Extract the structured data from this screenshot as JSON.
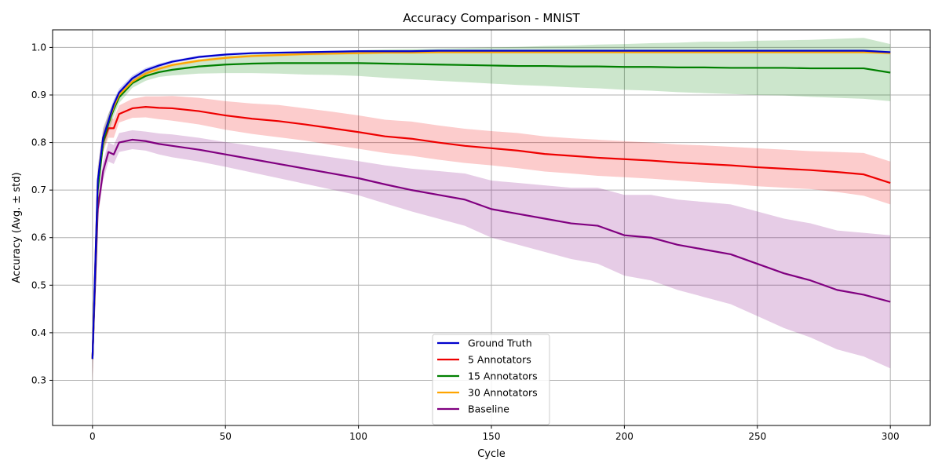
{
  "chart_data": {
    "type": "line",
    "title": "Accuracy Comparison - MNIST",
    "xlabel": "Cycle",
    "ylabel": "Accuracy (Avg. ± std)",
    "xlim": [
      -15,
      315
    ],
    "ylim": [
      0.205,
      1.037
    ],
    "x_ticks": [
      0,
      50,
      100,
      150,
      200,
      250,
      300
    ],
    "y_ticks": [
      0.3,
      0.4,
      0.5,
      0.6,
      0.7,
      0.8,
      0.9,
      1.0
    ],
    "grid": true,
    "legend_position": "lower-center",
    "x": [
      0,
      2,
      4,
      6,
      8,
      10,
      15,
      20,
      25,
      30,
      40,
      50,
      60,
      70,
      80,
      90,
      100,
      110,
      120,
      130,
      140,
      150,
      160,
      170,
      180,
      190,
      200,
      210,
      220,
      230,
      240,
      250,
      260,
      270,
      280,
      290,
      300
    ],
    "series": [
      {
        "name": "Ground Truth",
        "color": "#0000cc",
        "values": [
          0.345,
          0.72,
          0.81,
          0.845,
          0.88,
          0.905,
          0.935,
          0.952,
          0.962,
          0.97,
          0.98,
          0.985,
          0.988,
          0.989,
          0.99,
          0.991,
          0.992,
          0.992,
          0.992,
          0.993,
          0.993,
          0.993,
          0.993,
          0.993,
          0.993,
          0.993,
          0.993,
          0.993,
          0.993,
          0.993,
          0.993,
          0.993,
          0.993,
          0.993,
          0.993,
          0.993,
          0.99
        ],
        "std": [
          0.04,
          0.03,
          0.02,
          0.015,
          0.01,
          0.008,
          0.006,
          0.005,
          0.004,
          0.003,
          0.003,
          0.002,
          0.002,
          0.002,
          0.002,
          0.002,
          0.002,
          0.002,
          0.002,
          0.002,
          0.002,
          0.002,
          0.002,
          0.002,
          0.002,
          0.002,
          0.002,
          0.002,
          0.002,
          0.002,
          0.002,
          0.002,
          0.002,
          0.002,
          0.002,
          0.002,
          0.002
        ]
      },
      {
        "name": "5 Annotators",
        "color": "#ee0000",
        "values": [
          0.345,
          0.71,
          0.8,
          0.83,
          0.83,
          0.86,
          0.872,
          0.875,
          0.873,
          0.872,
          0.866,
          0.857,
          0.85,
          0.845,
          0.838,
          0.83,
          0.822,
          0.813,
          0.808,
          0.8,
          0.793,
          0.788,
          0.783,
          0.776,
          0.772,
          0.768,
          0.765,
          0.762,
          0.758,
          0.755,
          0.752,
          0.748,
          0.745,
          0.742,
          0.738,
          0.733,
          0.715
        ],
        "std": [
          0.05,
          0.02,
          0.02,
          0.02,
          0.02,
          0.018,
          0.02,
          0.022,
          0.024,
          0.026,
          0.028,
          0.03,
          0.032,
          0.034,
          0.034,
          0.035,
          0.035,
          0.035,
          0.036,
          0.036,
          0.036,
          0.036,
          0.037,
          0.037,
          0.037,
          0.038,
          0.038,
          0.038,
          0.038,
          0.039,
          0.039,
          0.04,
          0.04,
          0.04,
          0.042,
          0.045,
          0.045
        ]
      },
      {
        "name": "15 Annotators",
        "color": "#008000",
        "values": [
          0.345,
          0.7,
          0.8,
          0.84,
          0.87,
          0.895,
          0.925,
          0.94,
          0.948,
          0.953,
          0.96,
          0.964,
          0.966,
          0.967,
          0.967,
          0.967,
          0.967,
          0.966,
          0.965,
          0.964,
          0.963,
          0.962,
          0.961,
          0.961,
          0.96,
          0.96,
          0.959,
          0.959,
          0.958,
          0.958,
          0.957,
          0.957,
          0.957,
          0.956,
          0.956,
          0.956,
          0.947
        ],
        "std": [
          0.04,
          0.02,
          0.02,
          0.02,
          0.015,
          0.012,
          0.01,
          0.01,
          0.01,
          0.012,
          0.015,
          0.018,
          0.02,
          0.022,
          0.024,
          0.025,
          0.027,
          0.03,
          0.032,
          0.034,
          0.036,
          0.038,
          0.04,
          0.042,
          0.044,
          0.046,
          0.048,
          0.05,
          0.052,
          0.054,
          0.055,
          0.057,
          0.058,
          0.06,
          0.062,
          0.064,
          0.06
        ]
      },
      {
        "name": "30 Annotators",
        "color": "#ffa500",
        "values": [
          0.345,
          0.72,
          0.81,
          0.845,
          0.875,
          0.9,
          0.928,
          0.945,
          0.955,
          0.963,
          0.972,
          0.978,
          0.982,
          0.984,
          0.986,
          0.987,
          0.988,
          0.989,
          0.989,
          0.99,
          0.99,
          0.99,
          0.99,
          0.99,
          0.99,
          0.99,
          0.99,
          0.99,
          0.99,
          0.99,
          0.99,
          0.99,
          0.99,
          0.99,
          0.99,
          0.99,
          0.988
        ],
        "std": [
          0.04,
          0.03,
          0.02,
          0.015,
          0.01,
          0.008,
          0.006,
          0.005,
          0.004,
          0.004,
          0.003,
          0.003,
          0.003,
          0.003,
          0.003,
          0.003,
          0.003,
          0.003,
          0.003,
          0.003,
          0.003,
          0.003,
          0.003,
          0.003,
          0.003,
          0.003,
          0.003,
          0.003,
          0.003,
          0.003,
          0.003,
          0.003,
          0.003,
          0.003,
          0.003,
          0.003,
          0.003
        ]
      },
      {
        "name": "Baseline",
        "color": "#800080",
        "values": [
          0.345,
          0.66,
          0.74,
          0.78,
          0.775,
          0.8,
          0.806,
          0.803,
          0.797,
          0.793,
          0.785,
          0.775,
          0.765,
          0.755,
          0.745,
          0.735,
          0.725,
          0.712,
          0.7,
          0.69,
          0.68,
          0.66,
          0.65,
          0.64,
          0.63,
          0.625,
          0.605,
          0.6,
          0.585,
          0.575,
          0.565,
          0.545,
          0.525,
          0.51,
          0.49,
          0.48,
          0.465
        ],
        "std": [
          0.04,
          0.02,
          0.02,
          0.02,
          0.02,
          0.02,
          0.02,
          0.02,
          0.022,
          0.024,
          0.025,
          0.026,
          0.028,
          0.03,
          0.032,
          0.034,
          0.036,
          0.04,
          0.045,
          0.05,
          0.055,
          0.06,
          0.065,
          0.07,
          0.075,
          0.08,
          0.085,
          0.09,
          0.095,
          0.1,
          0.105,
          0.11,
          0.115,
          0.12,
          0.125,
          0.13,
          0.14
        ]
      }
    ]
  }
}
